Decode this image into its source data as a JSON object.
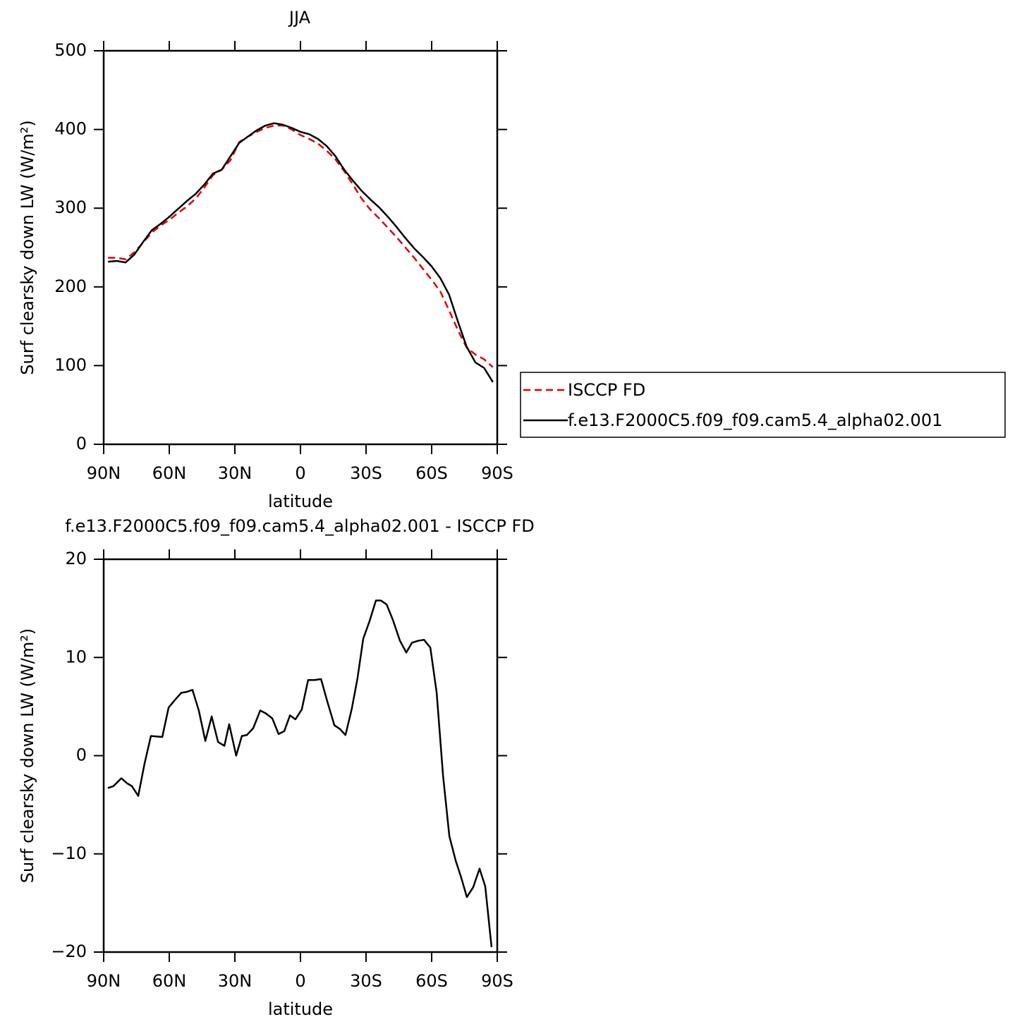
{
  "chart_data": [
    {
      "type": "line",
      "title": "JJA",
      "x_label": "latitude",
      "y_label": "Surf clearsky down LW (W/m²)",
      "x": [
        88,
        84,
        80,
        76,
        72,
        68,
        64,
        60,
        56,
        52,
        48,
        44,
        40,
        36,
        32,
        28,
        24,
        20,
        16,
        12,
        8,
        4,
        0,
        -4,
        -8,
        -12,
        -16,
        -20,
        -24,
        -28,
        -32,
        -36,
        -40,
        -44,
        -48,
        -52,
        -56,
        -60,
        -64,
        -68,
        -72,
        -76,
        -80,
        -84,
        -88
      ],
      "series": [
        {
          "name": "ISCCP FD",
          "color": "#e00000",
          "dash": true,
          "values": [
            237,
            237,
            235,
            244,
            256,
            269,
            278,
            285,
            294,
            302,
            312,
            326,
            342,
            349,
            361,
            384,
            391,
            397,
            402,
            405,
            405,
            400,
            393,
            388,
            382,
            373,
            362,
            347,
            330,
            312,
            298,
            287,
            275,
            263,
            250,
            237,
            223,
            209,
            194,
            170,
            145,
            123,
            114,
            108,
            98
          ]
        },
        {
          "name": "f.e13.F2000C5.f09_f09.cam5.4_alpha02.001",
          "color": "#000000",
          "dash": false,
          "values": [
            232,
            233,
            231,
            241,
            257,
            272,
            280,
            289,
            299,
            309,
            318,
            330,
            344,
            349,
            366,
            383,
            391,
            399,
            405,
            408,
            406,
            402,
            397,
            394,
            388,
            379,
            366,
            349,
            335,
            322,
            311,
            301,
            289,
            276,
            262,
            249,
            238,
            226,
            211,
            190,
            156,
            124,
            104,
            97,
            79
          ]
        }
      ],
      "xlim": [
        90,
        -90
      ],
      "xticks": [
        {
          "value": 90,
          "label": "90N"
        },
        {
          "value": 60,
          "label": "60N"
        },
        {
          "value": 30,
          "label": "30N"
        },
        0,
        {
          "value": -30,
          "label": "30S"
        },
        {
          "value": -60,
          "label": "60S"
        },
        {
          "value": -90,
          "label": "90S"
        }
      ],
      "ylim": [
        0,
        500
      ],
      "yticks": [
        0,
        100,
        200,
        300,
        400,
        500
      ],
      "legend": "right"
    },
    {
      "type": "line",
      "title": "f.e13.F2000C5.f09_f09.cam5.4_alpha02.001 - ISCCP FD",
      "x_label": "latitude",
      "y_label": "Surf clearsky down LW (W/m²)",
      "x": [
        88.1,
        85.5,
        81.9,
        79.4,
        77.1,
        74.2,
        71.3,
        68.4,
        63.2,
        60.3,
        57.7,
        54.5,
        51.9,
        49.4,
        46.5,
        43.5,
        40.6,
        37.7,
        34.8,
        32.6,
        29.4,
        26.8,
        24.5,
        21.6,
        18.4,
        15.8,
        12.9,
        10.0,
        7.4,
        4.8,
        2.3,
        -0.6,
        -3.5,
        -6.5,
        -9.4,
        -12.3,
        -15.5,
        -18.1,
        -20.6,
        -23.5,
        -26.1,
        -28.7,
        -31.6,
        -34.5,
        -36.8,
        -39.4,
        -42.3,
        -45.5,
        -48.4,
        -51.0,
        -53.9,
        -56.5,
        -59.4,
        -62.3,
        -65.2,
        -68.1,
        -71.0,
        -73.5,
        -76.1,
        -79.0,
        -81.9,
        -84.5,
        -87.4
      ],
      "values": [
        -3.3,
        -3.1,
        -2.3,
        -2.8,
        -3.1,
        -4.1,
        -0.8,
        2.0,
        1.9,
        4.9,
        5.6,
        6.4,
        6.5,
        6.7,
        4.6,
        1.5,
        4.0,
        1.4,
        1.0,
        3.2,
        0.0,
        2.0,
        2.1,
        2.8,
        4.6,
        4.3,
        3.8,
        2.2,
        2.5,
        4.1,
        3.7,
        4.7,
        7.7,
        7.7,
        7.8,
        5.5,
        3.1,
        2.7,
        2.1,
        4.8,
        7.9,
        11.9,
        13.7,
        15.8,
        15.8,
        15.4,
        13.8,
        11.7,
        10.5,
        11.5,
        11.7,
        11.8,
        11.0,
        6.4,
        -2.0,
        -8.2,
        -10.7,
        -12.4,
        -14.4,
        -13.4,
        -11.5,
        -13.3,
        -19.5
      ],
      "color": "#000000",
      "xlim": [
        90,
        -90
      ],
      "xticks": [
        {
          "value": 90,
          "label": "90N"
        },
        {
          "value": 60,
          "label": "60N"
        },
        {
          "value": 30,
          "label": "30N"
        },
        0,
        {
          "value": -30,
          "label": "30S"
        },
        {
          "value": -60,
          "label": "60S"
        },
        {
          "value": -90,
          "label": "90S"
        }
      ],
      "ylim": [
        -20,
        20
      ],
      "yticks": [
        {
          "value": -20,
          "label": "−20"
        },
        {
          "value": -10,
          "label": "−10"
        },
        0,
        10,
        20
      ]
    }
  ]
}
